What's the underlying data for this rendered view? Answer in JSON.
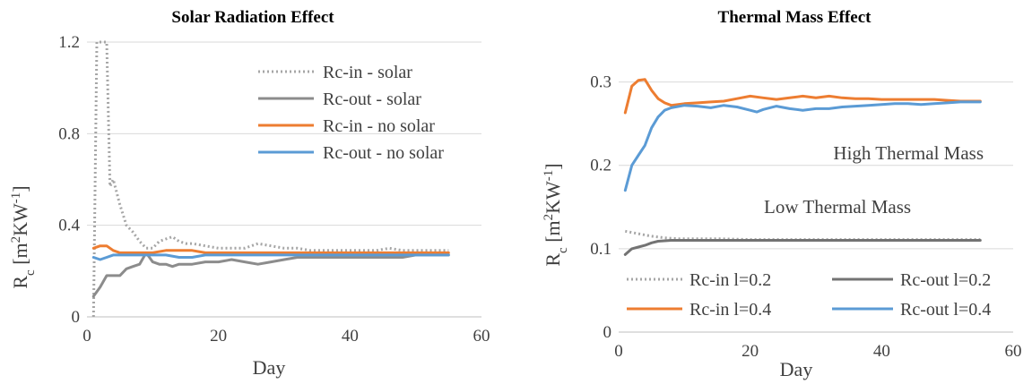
{
  "chart_data": [
    {
      "type": "line",
      "title": "Solar Radiation Effect",
      "xlabel": "Day",
      "ylabel": "Rc [m2KW-1]",
      "xlim": [
        0,
        60
      ],
      "ylim": [
        0,
        1.2
      ],
      "xticks": [
        "0",
        "20",
        "40",
        "60"
      ],
      "yticks": [
        "0",
        "0.4",
        "0.8",
        "1.2"
      ],
      "grid": "horizontal",
      "legend_position": "top-right",
      "series": [
        {
          "name": "Rc-in - solar",
          "color": "#a6a6a6",
          "style": "dotted",
          "x": [
            1,
            1.5,
            2,
            2.5,
            3,
            3.5,
            4,
            5,
            6,
            7,
            8,
            9,
            10,
            11,
            12,
            13,
            14,
            15,
            16,
            18,
            20,
            22,
            24,
            26,
            28,
            30,
            32,
            34,
            36,
            38,
            40,
            42,
            44,
            46,
            48,
            50,
            52,
            55
          ],
          "y": [
            0.0,
            1.2,
            1.2,
            1.2,
            1.2,
            0.57,
            0.6,
            0.49,
            0.4,
            0.37,
            0.33,
            0.3,
            0.3,
            0.33,
            0.34,
            0.35,
            0.33,
            0.32,
            0.32,
            0.31,
            0.3,
            0.3,
            0.3,
            0.32,
            0.31,
            0.3,
            0.3,
            0.29,
            0.29,
            0.29,
            0.29,
            0.29,
            0.29,
            0.3,
            0.29,
            0.29,
            0.29,
            0.29
          ]
        },
        {
          "name": "Rc-out - solar",
          "color": "#8c8c8c",
          "style": "solid",
          "x": [
            1,
            2,
            3,
            4,
            5,
            6,
            7,
            8,
            9,
            10,
            11,
            12,
            13,
            14,
            16,
            18,
            20,
            22,
            24,
            26,
            28,
            30,
            32,
            34,
            36,
            38,
            40,
            42,
            44,
            46,
            48,
            50,
            52,
            55
          ],
          "y": [
            0.09,
            0.13,
            0.18,
            0.18,
            0.18,
            0.21,
            0.22,
            0.23,
            0.28,
            0.24,
            0.23,
            0.23,
            0.22,
            0.23,
            0.23,
            0.24,
            0.24,
            0.25,
            0.24,
            0.23,
            0.24,
            0.25,
            0.26,
            0.26,
            0.26,
            0.26,
            0.26,
            0.26,
            0.26,
            0.26,
            0.26,
            0.27,
            0.27,
            0.27
          ]
        },
        {
          "name": "Rc-in - no solar",
          "color": "#ed7d31",
          "style": "solid",
          "x": [
            1,
            2,
            3,
            4,
            5,
            6,
            8,
            10,
            12,
            14,
            16,
            18,
            20,
            25,
            30,
            35,
            40,
            45,
            50,
            55
          ],
          "y": [
            0.3,
            0.31,
            0.31,
            0.29,
            0.28,
            0.28,
            0.28,
            0.28,
            0.29,
            0.29,
            0.29,
            0.28,
            0.28,
            0.28,
            0.28,
            0.28,
            0.28,
            0.28,
            0.28,
            0.28
          ]
        },
        {
          "name": "Rc-out - no solar",
          "color": "#5b9bd5",
          "style": "solid",
          "x": [
            1,
            2,
            3,
            4,
            5,
            6,
            8,
            10,
            12,
            14,
            16,
            18,
            20,
            25,
            30,
            35,
            40,
            45,
            50,
            55
          ],
          "y": [
            0.26,
            0.25,
            0.26,
            0.27,
            0.27,
            0.27,
            0.27,
            0.27,
            0.27,
            0.26,
            0.26,
            0.27,
            0.27,
            0.27,
            0.27,
            0.27,
            0.27,
            0.27,
            0.27,
            0.27
          ]
        }
      ]
    },
    {
      "type": "line",
      "title": "Thermal Mass Effect",
      "xlabel": "Day",
      "ylabel": "Rc [m2KW-1]",
      "xlim": [
        0,
        60
      ],
      "ylim": [
        0,
        0.35
      ],
      "xticks": [
        "0",
        "20",
        "40",
        "60"
      ],
      "yticks": [
        "0",
        "0.1",
        "0.2",
        "0.3"
      ],
      "grid": "horizontal",
      "legend_position": "bottom",
      "annotations": [
        "High Thermal Mass",
        "Low Thermal Mass"
      ],
      "series": [
        {
          "name": "Rc-in l=0.2",
          "color": "#a6a6a6",
          "style": "dotted",
          "x": [
            1,
            3,
            5,
            7,
            9,
            11,
            15,
            20,
            30,
            40,
            50,
            55
          ],
          "y": [
            0.121,
            0.118,
            0.115,
            0.113,
            0.112,
            0.112,
            0.112,
            0.111,
            0.111,
            0.111,
            0.111,
            0.111
          ]
        },
        {
          "name": "Rc-out l=0.2",
          "color": "#737373",
          "style": "solid",
          "x": [
            1,
            2,
            3,
            4,
            5,
            6,
            8,
            10,
            15,
            20,
            25,
            30,
            35,
            40,
            45,
            50,
            55
          ],
          "y": [
            0.093,
            0.1,
            0.102,
            0.104,
            0.107,
            0.109,
            0.11,
            0.11,
            0.11,
            0.11,
            0.11,
            0.11,
            0.11,
            0.11,
            0.11,
            0.11,
            0.11
          ]
        },
        {
          "name": "Rc-in l=0.4",
          "color": "#ed7d31",
          "style": "solid",
          "x": [
            1,
            2,
            3,
            4,
            5,
            6,
            7,
            8,
            10,
            12,
            14,
            16,
            18,
            20,
            22,
            24,
            26,
            28,
            30,
            32,
            34,
            36,
            38,
            40,
            42,
            44,
            46,
            48,
            50,
            52,
            55
          ],
          "y": [
            0.263,
            0.295,
            0.302,
            0.303,
            0.29,
            0.28,
            0.275,
            0.272,
            0.274,
            0.275,
            0.276,
            0.277,
            0.28,
            0.283,
            0.281,
            0.279,
            0.281,
            0.283,
            0.281,
            0.283,
            0.281,
            0.28,
            0.28,
            0.279,
            0.279,
            0.279,
            0.279,
            0.279,
            0.278,
            0.277,
            0.277
          ]
        },
        {
          "name": "Rc-out l=0.4",
          "color": "#5b9bd5",
          "style": "solid",
          "x": [
            1,
            2,
            3,
            4,
            5,
            6,
            7,
            8,
            10,
            12,
            14,
            16,
            18,
            20,
            21,
            22,
            24,
            26,
            28,
            30,
            32,
            34,
            36,
            38,
            40,
            42,
            44,
            46,
            48,
            50,
            52,
            55
          ],
          "y": [
            0.17,
            0.2,
            0.212,
            0.224,
            0.245,
            0.258,
            0.266,
            0.269,
            0.272,
            0.271,
            0.269,
            0.272,
            0.27,
            0.266,
            0.264,
            0.267,
            0.271,
            0.268,
            0.266,
            0.268,
            0.268,
            0.27,
            0.271,
            0.272,
            0.273,
            0.274,
            0.274,
            0.273,
            0.274,
            0.275,
            0.276,
            0.276
          ]
        }
      ]
    }
  ]
}
